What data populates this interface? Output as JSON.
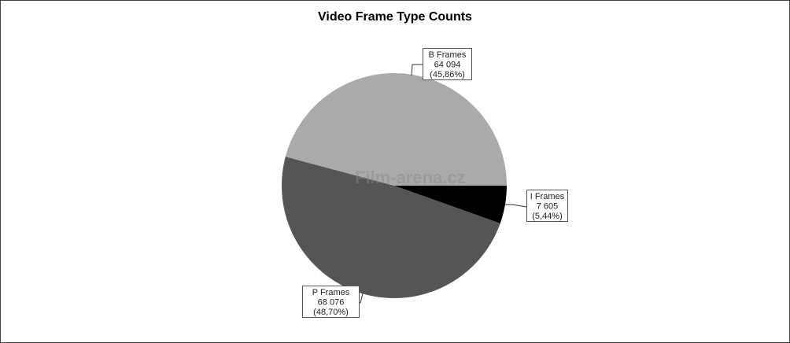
{
  "chart_data": {
    "type": "pie",
    "title": "Video Frame Type Counts",
    "slices": [
      {
        "label": "I Frames",
        "value_text": "7 605",
        "percent_text": "(5,44%)",
        "value": 7605,
        "percent": 5.44,
        "color": "#000000"
      },
      {
        "label": "P Frames",
        "value_text": "68 076",
        "percent_text": "(48,70%)",
        "value": 68076,
        "percent": 48.7,
        "color": "#555555"
      },
      {
        "label": "B Frames",
        "value_text": "64 094",
        "percent_text": "(45,86%)",
        "value": 64094,
        "percent": 45.86,
        "color": "#aaaaaa"
      }
    ],
    "start_angle": "3 o'clock",
    "direction": "clockwise",
    "legend": "none"
  },
  "watermark": "Film-arena.cz"
}
